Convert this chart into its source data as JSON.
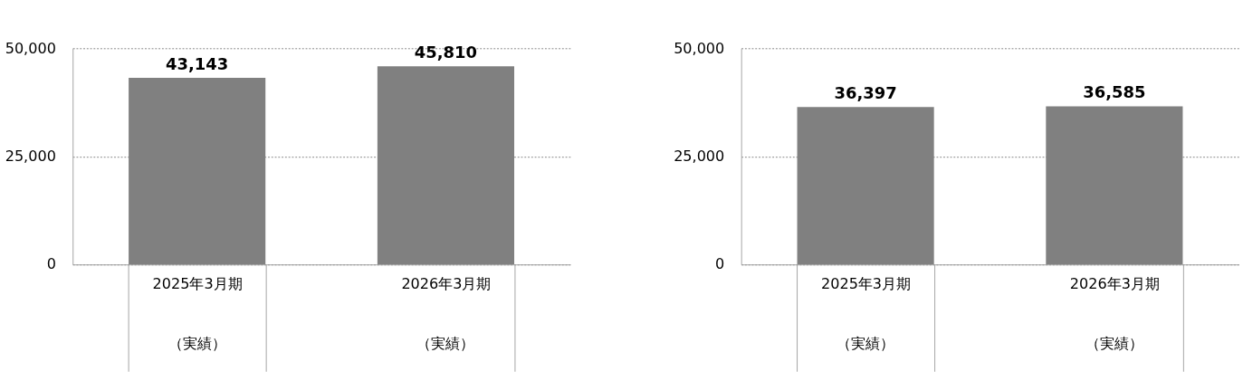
{
  "chart_data": [
    {
      "type": "bar",
      "categories": [
        "2025年3月期",
        "2026年3月期"
      ],
      "values": [
        43143,
        45810
      ],
      "value_labels": [
        "43,143",
        "45,810"
      ],
      "annotations": [
        "（実績）",
        "（実績）"
      ],
      "color": "#808080",
      "ylim": [
        0,
        50000
      ],
      "yticks": [
        {
          "value": 0,
          "label": "0"
        },
        {
          "value": 25000,
          "label": "25,000"
        },
        {
          "value": 50000,
          "label": "50,000"
        }
      ],
      "grid": "y"
    },
    {
      "type": "bar",
      "categories": [
        "2025年3月期",
        "2026年3月期"
      ],
      "values": [
        36397,
        36585
      ],
      "value_labels": [
        "36,397",
        "36,585"
      ],
      "annotations": [
        "（実績）",
        "（実績）"
      ],
      "color": "#808080",
      "ylim": [
        0,
        50000
      ],
      "yticks": [
        {
          "value": 0,
          "label": "0"
        },
        {
          "value": 25000,
          "label": "25,000"
        },
        {
          "value": 50000,
          "label": "50,000"
        }
      ],
      "grid": "y"
    }
  ]
}
